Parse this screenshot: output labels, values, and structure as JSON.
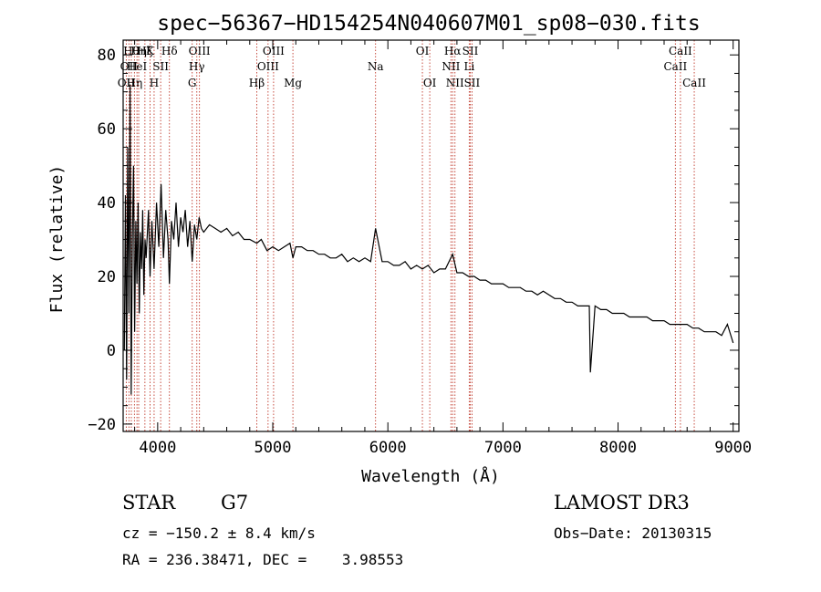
{
  "chart_data": {
    "type": "line",
    "title": "spec−56367−HD154254N040607M01_sp08−030.fits",
    "xlabel": "Wavelength (Å)",
    "ylabel": "Flux (relative)",
    "xlim": [
      3700,
      9050
    ],
    "ylim": [
      -22,
      84
    ],
    "xticks": [
      {
        "value": 4000,
        "label": "4000"
      },
      {
        "value": 5000,
        "label": "5000"
      },
      {
        "value": 6000,
        "label": "6000"
      },
      {
        "value": 7000,
        "label": "7000"
      },
      {
        "value": 8000,
        "label": "8000"
      },
      {
        "value": 9000,
        "label": "9000"
      }
    ],
    "yticks": [
      {
        "value": -20,
        "label": "−20"
      },
      {
        "value": 0,
        "label": "0"
      },
      {
        "value": 20,
        "label": "20"
      },
      {
        "value": 40,
        "label": "40"
      },
      {
        "value": 60,
        "label": "60"
      },
      {
        "value": 80,
        "label": "80"
      }
    ],
    "spectral_lines": [
      {
        "wave": 3727,
        "label": "OII",
        "row": 2
      },
      {
        "wave": 3750,
        "label": "OII",
        "row": 1
      },
      {
        "wave": 3771,
        "label": "Hθ",
        "row": 0
      },
      {
        "wave": 3798,
        "label": "Hη",
        "row": 2
      },
      {
        "wave": 3820,
        "label": "HeI",
        "row": 1
      },
      {
        "wave": 3835,
        "label": "Hη",
        "row": 0
      },
      {
        "wave": 3889,
        "label": "Hξ",
        "row": 0
      },
      {
        "wave": 3934,
        "label": "K",
        "row": 0
      },
      {
        "wave": 3969,
        "label": "H",
        "row": 2
      },
      {
        "wave": 4026,
        "label": "SII",
        "row": 1
      },
      {
        "wave": 4102,
        "label": "Hδ",
        "row": 0
      },
      {
        "wave": 4300,
        "label": "G",
        "row": 2
      },
      {
        "wave": 4340,
        "label": "Hγ",
        "row": 1
      },
      {
        "wave": 4363,
        "label": "OIII",
        "row": 0
      },
      {
        "wave": 4861,
        "label": "Hβ",
        "row": 2
      },
      {
        "wave": 4959,
        "label": "OIII",
        "row": 1
      },
      {
        "wave": 5007,
        "label": "OIII",
        "row": 0
      },
      {
        "wave": 5175,
        "label": "Mg",
        "row": 2
      },
      {
        "wave": 5893,
        "label": "Na",
        "row": 1
      },
      {
        "wave": 6300,
        "label": "OI",
        "row": 0
      },
      {
        "wave": 6364,
        "label": "OI",
        "row": 2
      },
      {
        "wave": 6548,
        "label": "NII",
        "row": 1
      },
      {
        "wave": 6563,
        "label": "Hα",
        "row": 0
      },
      {
        "wave": 6583,
        "label": "NII",
        "row": 2
      },
      {
        "wave": 6707,
        "label": "Li",
        "row": 1
      },
      {
        "wave": 6716,
        "label": "SII",
        "row": 0
      },
      {
        "wave": 6731,
        "label": "SII",
        "row": 2
      },
      {
        "wave": 8498,
        "label": "CaII",
        "row": 1
      },
      {
        "wave": 8542,
        "label": "CaII",
        "row": 0
      },
      {
        "wave": 8662,
        "label": "CaII",
        "row": 2
      }
    ],
    "line_color": "#c0392b",
    "spectrum_color": "#000000",
    "series": [
      {
        "name": "flux",
        "x": [
          3710,
          3720,
          3730,
          3740,
          3750,
          3760,
          3770,
          3780,
          3790,
          3800,
          3810,
          3820,
          3830,
          3840,
          3850,
          3860,
          3870,
          3880,
          3890,
          3900,
          3920,
          3934,
          3950,
          3969,
          3990,
          4010,
          4030,
          4050,
          4070,
          4090,
          4102,
          4120,
          4140,
          4160,
          4180,
          4200,
          4220,
          4240,
          4260,
          4280,
          4300,
          4320,
          4340,
          4360,
          4380,
          4400,
          4450,
          4500,
          4550,
          4600,
          4650,
          4700,
          4750,
          4800,
          4861,
          4900,
          4950,
          5000,
          5050,
          5100,
          5150,
          5175,
          5200,
          5250,
          5300,
          5350,
          5400,
          5450,
          5500,
          5550,
          5600,
          5650,
          5700,
          5750,
          5800,
          5850,
          5893,
          5950,
          6000,
          6050,
          6100,
          6150,
          6200,
          6250,
          6300,
          6350,
          6400,
          6450,
          6500,
          6563,
          6600,
          6650,
          6700,
          6750,
          6800,
          6850,
          6900,
          6950,
          7000,
          7050,
          7100,
          7150,
          7200,
          7250,
          7300,
          7350,
          7400,
          7450,
          7500,
          7550,
          7600,
          7650,
          7700,
          7750,
          7760,
          7800,
          7850,
          7900,
          7950,
          8000,
          8050,
          8100,
          8150,
          8200,
          8250,
          8300,
          8350,
          8400,
          8450,
          8500,
          8550,
          8600,
          8650,
          8700,
          8750,
          8800,
          8850,
          8900,
          8950,
          9000
        ],
        "values": [
          0,
          42,
          -8,
          55,
          10,
          72,
          -12,
          30,
          50,
          5,
          35,
          18,
          40,
          10,
          32,
          22,
          38,
          15,
          30,
          25,
          38,
          20,
          35,
          22,
          40,
          28,
          45,
          25,
          38,
          30,
          18,
          35,
          30,
          40,
          28,
          36,
          32,
          38,
          28,
          35,
          24,
          34,
          30,
          36,
          33,
          32,
          34,
          33,
          32,
          33,
          31,
          32,
          30,
          30,
          29,
          30,
          27,
          28,
          27,
          28,
          29,
          25,
          28,
          28,
          27,
          27,
          26,
          26,
          25,
          25,
          26,
          24,
          25,
          24,
          25,
          24,
          33,
          24,
          24,
          23,
          23,
          24,
          22,
          23,
          22,
          23,
          21,
          22,
          22,
          26,
          21,
          21,
          20,
          20,
          19,
          19,
          18,
          18,
          18,
          17,
          17,
          17,
          16,
          16,
          15,
          16,
          15,
          14,
          14,
          13,
          13,
          12,
          12,
          12,
          -6,
          12,
          11,
          11,
          10,
          10,
          10,
          9,
          9,
          9,
          9,
          8,
          8,
          8,
          7,
          7,
          7,
          7,
          6,
          6,
          5,
          5,
          5,
          4,
          7,
          2
        ]
      }
    ],
    "info": {
      "object_class": "STAR",
      "subclass": "G7",
      "survey": "LAMOST DR3",
      "redshift": "cz = −150.2 ± 8.4 km/s",
      "obs_date": "Obs−Date: 20130315",
      "coords": "RA = 236.38471, DEC =    3.98553"
    }
  }
}
